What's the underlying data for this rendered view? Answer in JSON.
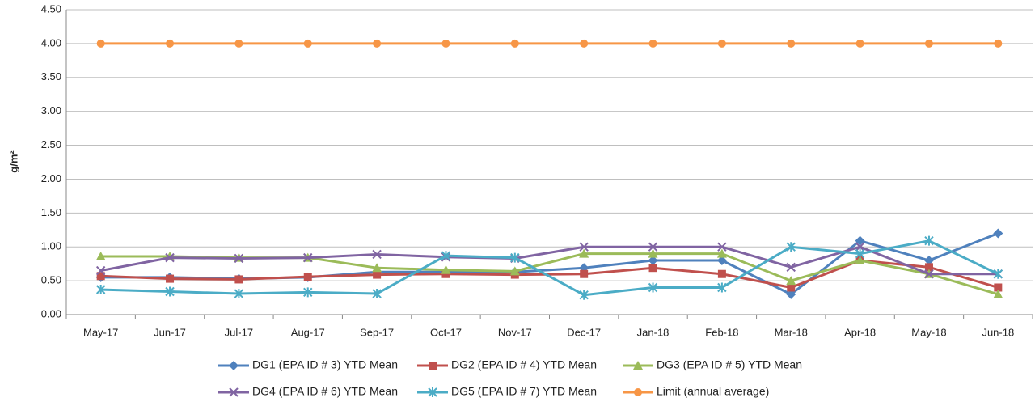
{
  "chart_data": {
    "type": "line",
    "y_label": "g/m²",
    "categories": [
      "May-17",
      "Jun-17",
      "Jul-17",
      "Aug-17",
      "Sep-17",
      "Oct-17",
      "Nov-17",
      "Dec-17",
      "Jan-18",
      "Feb-18",
      "Mar-18",
      "Apr-18",
      "May-18",
      "Jun-18"
    ],
    "series": [
      {
        "name": "DG1 (EPA ID # 3) YTD Mean",
        "color": "#4f81bd",
        "marker": "diamond",
        "values": [
          0.55,
          0.55,
          0.53,
          0.55,
          0.63,
          0.63,
          0.63,
          0.69,
          0.8,
          0.8,
          0.3,
          1.09,
          0.8,
          1.2
        ]
      },
      {
        "name": "DG2 (EPA ID # 4) YTD Mean",
        "color": "#c0504d",
        "marker": "square",
        "values": [
          0.57,
          0.53,
          0.52,
          0.56,
          0.59,
          0.6,
          0.59,
          0.6,
          0.69,
          0.6,
          0.4,
          0.8,
          0.7,
          0.4
        ]
      },
      {
        "name": "DG3 (EPA ID # 5) YTD Mean",
        "color": "#9bbb59",
        "marker": "triangle",
        "values": [
          0.86,
          0.86,
          0.84,
          0.84,
          0.69,
          0.66,
          0.64,
          0.9,
          0.9,
          0.9,
          0.5,
          0.8,
          0.6,
          0.3
        ]
      },
      {
        "name": "DG4 (EPA ID # 6) YTD Mean",
        "color": "#8064a2",
        "marker": "x",
        "values": [
          0.65,
          0.84,
          0.83,
          0.84,
          0.89,
          0.85,
          0.83,
          1.0,
          1.0,
          1.0,
          0.7,
          1.0,
          0.6,
          0.6
        ]
      },
      {
        "name": "DG5 (EPA ID # 7) YTD Mean",
        "color": "#4bacc6",
        "marker": "star",
        "values": [
          0.37,
          0.34,
          0.31,
          0.33,
          0.31,
          0.87,
          0.84,
          0.29,
          0.4,
          0.4,
          1.0,
          0.9,
          1.09,
          0.6
        ]
      },
      {
        "name": "Limit (annual average)",
        "color": "#f79646",
        "marker": "circle",
        "values": [
          4,
          4,
          4,
          4,
          4,
          4,
          4,
          4,
          4,
          4,
          4,
          4,
          4,
          4
        ]
      }
    ],
    "ylim": [
      0,
      4.5
    ],
    "yticks": [
      {
        "value": 0,
        "label": "0.00"
      },
      {
        "value": 0.5,
        "label": "0.50"
      },
      {
        "value": 1,
        "label": "1.00"
      },
      {
        "value": 1.5,
        "label": "1.50"
      },
      {
        "value": 2,
        "label": "2.00"
      },
      {
        "value": 2.5,
        "label": "2.50"
      },
      {
        "value": 3,
        "label": "3.00"
      },
      {
        "value": 3.5,
        "label": "3.50"
      },
      {
        "value": 4,
        "label": "4.00"
      },
      {
        "value": 4.5,
        "label": "4.50"
      }
    ],
    "grid": true,
    "legend": "bottom"
  }
}
